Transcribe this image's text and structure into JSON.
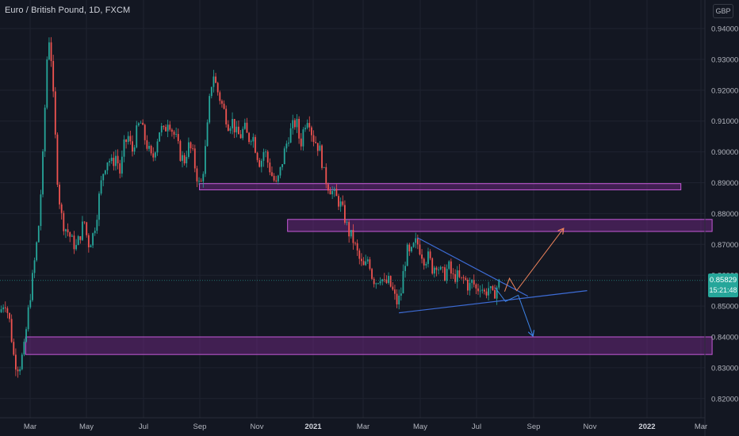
{
  "header": {
    "symbol_title": "Euro / British Pound, 1D, FXCM",
    "currency": "GBP"
  },
  "last_price": {
    "value": "0.85829",
    "countdown": "15:21:48",
    "color": "#26a69a"
  },
  "colors": {
    "background": "#131722",
    "up": "#26a69a",
    "down": "#ef5350",
    "grid": "#1f2330",
    "zone_fill": "#7b2a8f",
    "zone_border": "#c65ad9",
    "trendline": "#3d6cd6",
    "arrow_up": "#f0845c",
    "arrow_down": "#3d83e6"
  },
  "chart_data": {
    "type": "candlestick",
    "x_tick_labels": [
      "Mar",
      "May",
      "Jul",
      "Sep",
      "Nov",
      "2021",
      "Mar",
      "May",
      "Jul",
      "Sep",
      "Nov",
      "2022",
      "Mar"
    ],
    "y_ticks": [
      0.82,
      0.83,
      0.84,
      0.85,
      0.86,
      0.87,
      0.88,
      0.89,
      0.9,
      0.91,
      0.92,
      0.93,
      0.94
    ],
    "y_tick_labels": [
      "0.82000",
      "0.83000",
      "0.84000",
      "0.85000",
      "0.86000",
      "0.87000",
      "0.88000",
      "0.89000",
      "0.90000",
      "0.91000",
      "0.92000",
      "0.93000",
      "0.94000"
    ],
    "ylim": [
      0.8135,
      0.9495
    ],
    "xlim": [
      0,
      880
    ],
    "grid": true,
    "close_path": [
      [
        0,
        0.848
      ],
      [
        6,
        0.852
      ],
      [
        12,
        0.845
      ],
      [
        18,
        0.832
      ],
      [
        24,
        0.83
      ],
      [
        30,
        0.836
      ],
      [
        36,
        0.85
      ],
      [
        42,
        0.862
      ],
      [
        48,
        0.875
      ],
      [
        53,
        0.895
      ],
      [
        57,
        0.92
      ],
      [
        60,
        0.938
      ],
      [
        63,
        0.935
      ],
      [
        66,
        0.92
      ],
      [
        69,
        0.905
      ],
      [
        72,
        0.89
      ],
      [
        76,
        0.88
      ],
      [
        80,
        0.876
      ],
      [
        85,
        0.874
      ],
      [
        90,
        0.871
      ],
      [
        95,
        0.869
      ],
      [
        100,
        0.873
      ],
      [
        105,
        0.878
      ],
      [
        110,
        0.87
      ],
      [
        115,
        0.872
      ],
      [
        120,
        0.878
      ],
      [
        125,
        0.888
      ],
      [
        130,
        0.895
      ],
      [
        135,
        0.898
      ],
      [
        140,
        0.896
      ],
      [
        145,
        0.899
      ],
      [
        150,
        0.893
      ],
      [
        155,
        0.902
      ],
      [
        160,
        0.905
      ],
      [
        165,
        0.9
      ],
      [
        170,
        0.906
      ],
      [
        175,
        0.91
      ],
      [
        180,
        0.905
      ],
      [
        185,
        0.901
      ],
      [
        190,
        0.897
      ],
      [
        195,
        0.903
      ],
      [
        200,
        0.908
      ],
      [
        205,
        0.906
      ],
      [
        210,
        0.911
      ],
      [
        215,
        0.907
      ],
      [
        220,
        0.904
      ],
      [
        225,
        0.899
      ],
      [
        230,
        0.897
      ],
      [
        235,
        0.902
      ],
      [
        240,
        0.9
      ],
      [
        245,
        0.893
      ],
      [
        250,
        0.888
      ],
      [
        254,
        0.895
      ],
      [
        258,
        0.905
      ],
      [
        262,
        0.918
      ],
      [
        266,
        0.926
      ],
      [
        270,
        0.921
      ],
      [
        275,
        0.917
      ],
      [
        280,
        0.913
      ],
      [
        285,
        0.909
      ],
      [
        290,
        0.91
      ],
      [
        295,
        0.906
      ],
      [
        300,
        0.905
      ],
      [
        305,
        0.908
      ],
      [
        310,
        0.904
      ],
      [
        315,
        0.906
      ],
      [
        320,
        0.9
      ],
      [
        325,
        0.896
      ],
      [
        330,
        0.901
      ],
      [
        335,
        0.896
      ],
      [
        340,
        0.892
      ],
      [
        345,
        0.889
      ],
      [
        350,
        0.894
      ],
      [
        355,
        0.9
      ],
      [
        360,
        0.905
      ],
      [
        365,
        0.908
      ],
      [
        370,
        0.91
      ],
      [
        375,
        0.902
      ],
      [
        380,
        0.909
      ],
      [
        385,
        0.912
      ],
      [
        390,
        0.905
      ],
      [
        395,
        0.903
      ],
      [
        400,
        0.9
      ],
      [
        405,
        0.892
      ],
      [
        410,
        0.889
      ],
      [
        415,
        0.887
      ],
      [
        420,
        0.885
      ],
      [
        425,
        0.883
      ],
      [
        430,
        0.879
      ],
      [
        435,
        0.874
      ],
      [
        440,
        0.872
      ],
      [
        445,
        0.868
      ],
      [
        450,
        0.864
      ],
      [
        455,
        0.862
      ],
      [
        460,
        0.866
      ],
      [
        465,
        0.859
      ],
      [
        470,
        0.858
      ],
      [
        475,
        0.86
      ],
      [
        480,
        0.857
      ],
      [
        485,
        0.858
      ],
      [
        490,
        0.855
      ],
      [
        495,
        0.851
      ],
      [
        500,
        0.853
      ],
      [
        504,
        0.862
      ],
      [
        508,
        0.868
      ],
      [
        512,
        0.866
      ],
      [
        516,
        0.869
      ],
      [
        520,
        0.871
      ],
      [
        525,
        0.868
      ],
      [
        530,
        0.865
      ],
      [
        535,
        0.866
      ],
      [
        540,
        0.862
      ],
      [
        545,
        0.864
      ],
      [
        550,
        0.861
      ],
      [
        555,
        0.86
      ],
      [
        560,
        0.863
      ],
      [
        565,
        0.859
      ],
      [
        570,
        0.86
      ],
      [
        575,
        0.858
      ],
      [
        580,
        0.859
      ],
      [
        585,
        0.856
      ],
      [
        590,
        0.858
      ],
      [
        595,
        0.855
      ],
      [
        600,
        0.857
      ],
      [
        605,
        0.854
      ],
      [
        610,
        0.856
      ],
      [
        615,
        0.853
      ],
      [
        620,
        0.856
      ],
      [
        624,
        0.858
      ]
    ],
    "zones": [
      {
        "x1": 249,
        "x2": 850,
        "ylow": 0.8877,
        "yhigh": 0.8897
      },
      {
        "x1": 359,
        "x2": 889,
        "ylow": 0.8742,
        "yhigh": 0.8781
      },
      {
        "x1": 32,
        "x2": 889,
        "ylow": 0.8343,
        "yhigh": 0.84
      }
    ],
    "trendlines": [
      {
        "from": [
          521,
          0.8722
        ],
        "to": [
          659,
          0.8532
        ]
      },
      {
        "from": [
          498,
          0.8478
        ],
        "to": [
          733,
          0.855
        ]
      }
    ],
    "arrows": [
      {
        "kind": "up",
        "points": [
          [
            630,
            0.8547
          ],
          [
            636,
            0.859
          ],
          [
            645,
            0.855
          ],
          [
            703,
            0.875
          ]
        ]
      },
      {
        "kind": "down",
        "points": [
          [
            618,
            0.856
          ],
          [
            631,
            0.8515
          ],
          [
            647,
            0.8535
          ],
          [
            665,
            0.8405
          ]
        ]
      }
    ]
  }
}
